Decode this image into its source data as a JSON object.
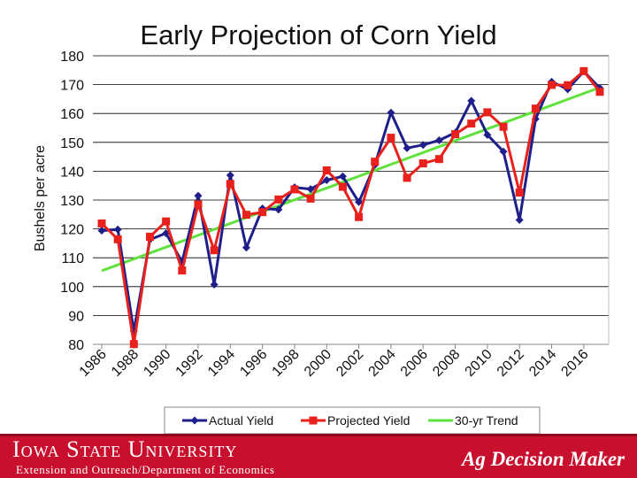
{
  "chart_data": {
    "type": "line",
    "title": "Early Projection of Corn Yield",
    "xlabel": "",
    "ylabel": "Bushels per acre",
    "ylim": [
      80,
      180
    ],
    "yticks": [
      80,
      90,
      100,
      110,
      120,
      130,
      140,
      150,
      160,
      170,
      180
    ],
    "xlim": [
      1986,
      2017
    ],
    "xticks": [
      1986,
      1988,
      1990,
      1992,
      1994,
      1996,
      1998,
      2000,
      2002,
      2004,
      2006,
      2008,
      2010,
      2012,
      2014,
      2016
    ],
    "grid": "horizontal",
    "legend_position": "bottom",
    "series": [
      {
        "name": "Actual Yield",
        "color": "#1f1f8c",
        "marker": "diamond",
        "x": [
          1986,
          1987,
          1988,
          1989,
          1990,
          1991,
          1992,
          1993,
          1994,
          1995,
          1996,
          1997,
          1998,
          1999,
          2000,
          2001,
          2002,
          2003,
          2004,
          2005,
          2006,
          2007,
          2008,
          2009,
          2010,
          2011,
          2012,
          2013,
          2014,
          2015,
          2016,
          2017
        ],
        "values": [
          119.4,
          119.8,
          84.6,
          116.3,
          118.5,
          108.6,
          131.5,
          100.7,
          138.6,
          113.5,
          127.1,
          126.7,
          134.4,
          133.8,
          136.9,
          138.2,
          129.3,
          142.2,
          160.3,
          148.0,
          149.1,
          150.7,
          153.3,
          164.4,
          152.6,
          146.8,
          123.1,
          158.1,
          171.0,
          168.4,
          174.6,
          168.8
        ]
      },
      {
        "name": "Projected Yield",
        "color": "#e8211d",
        "marker": "square",
        "x": [
          1986,
          1987,
          1988,
          1989,
          1990,
          1991,
          1992,
          1993,
          1994,
          1995,
          1996,
          1997,
          1998,
          1999,
          2000,
          2001,
          2002,
          2003,
          2004,
          2005,
          2006,
          2007,
          2008,
          2009,
          2010,
          2011,
          2012,
          2013,
          2014,
          2015,
          2016,
          2017
        ],
        "values": [
          121.9,
          116.4,
          80.1,
          117.3,
          122.6,
          105.6,
          128.5,
          112.6,
          135.6,
          124.9,
          125.8,
          130.2,
          133.7,
          130.5,
          140.3,
          134.6,
          124.1,
          143.3,
          151.6,
          137.7,
          142.7,
          144.2,
          152.8,
          156.5,
          160.4,
          155.4,
          132.6,
          161.7,
          169.9,
          169.8,
          174.7,
          167.5
        ]
      },
      {
        "name": "30-yr Trend",
        "color": "#5fe23c",
        "marker": "none",
        "x": [
          1986,
          2017
        ],
        "values": [
          105.5,
          169.0
        ]
      }
    ]
  },
  "footer": {
    "university": "Iowa State University",
    "extension": "Extension and Outreach/Department of Economics",
    "brand": "Ag Decision Maker"
  }
}
